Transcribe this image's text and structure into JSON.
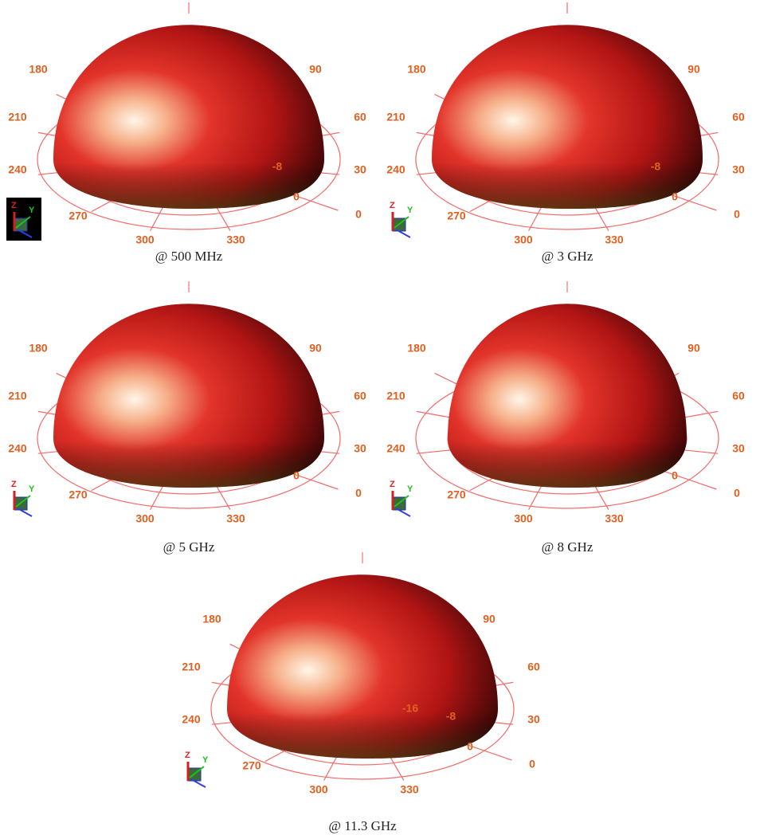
{
  "panels": [
    {
      "caption": "@ 500 MHz",
      "angle_labels": [
        "180",
        "90",
        "210",
        "60",
        "240",
        "30",
        "270",
        "0",
        "300",
        "330"
      ],
      "ring_labels": [
        "-8",
        "0"
      ]
    },
    {
      "caption": "@ 3 GHz",
      "angle_labels": [
        "180",
        "90",
        "210",
        "60",
        "240",
        "30",
        "270",
        "0",
        "300",
        "330"
      ],
      "ring_labels": [
        "-8",
        "0"
      ]
    },
    {
      "caption": "@ 5 GHz",
      "angle_labels": [
        "180",
        "90",
        "210",
        "60",
        "240",
        "30",
        "270",
        "0",
        "300",
        "330"
      ],
      "ring_labels": [
        "0"
      ]
    },
    {
      "caption": "@ 8 GHz",
      "angle_labels": [
        "180",
        "90",
        "210",
        "60",
        "240",
        "30",
        "270",
        "0",
        "300",
        "330"
      ],
      "ring_labels": [
        "0"
      ]
    },
    {
      "caption": "@ 11.3 GHz",
      "angle_labels": [
        "180",
        "90",
        "210",
        "60",
        "240",
        "30",
        "270",
        "0",
        "300",
        "330"
      ],
      "ring_labels": [
        "-16",
        "-8",
        "0"
      ]
    }
  ],
  "axis_icon": {
    "z": "Z",
    "y": "Y"
  }
}
